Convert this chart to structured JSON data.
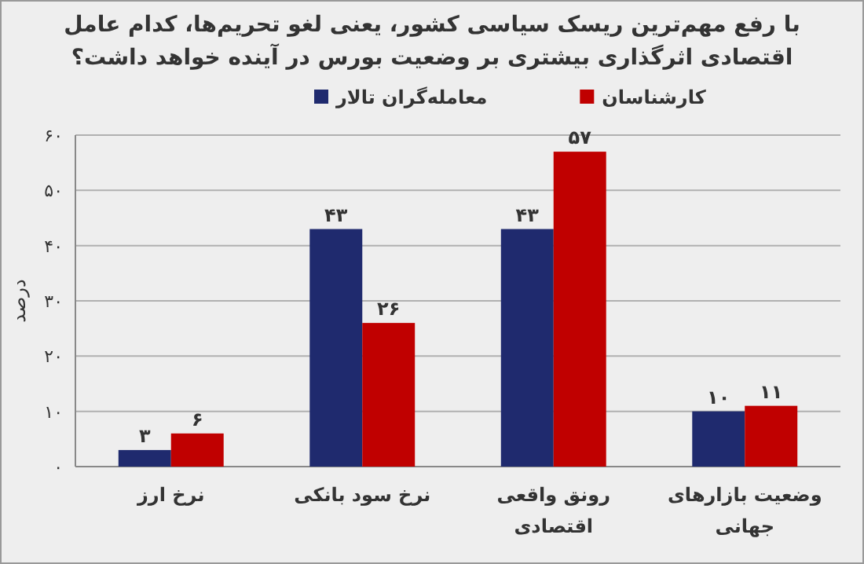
{
  "chart_data": {
    "type": "bar",
    "title": "با رفع مهم‌ترین ریسک سیاسی کشور، یعنی لغو تحریم‌ها، کدام عامل اقتصادی اثرگذاری بیشتری بر وضعیت بورس در آینده خواهد داشت؟",
    "ylabel": "درصد",
    "categories": [
      "نرخ ارز",
      "نرخ سود بانکی",
      "رونق واقعی اقتصادی",
      "وضعیت بازارهای جهانی"
    ],
    "series": [
      {
        "name": "معامله‌گران تالار",
        "color": "#1f2a6e",
        "values": [
          3,
          43,
          43,
          10
        ],
        "value_labels": [
          "۳",
          "۴۳",
          "۴۳",
          "۱۰"
        ]
      },
      {
        "name": "کارشناسان",
        "color": "#c00000",
        "values": [
          6,
          26,
          57,
          11
        ],
        "value_labels": [
          "۶",
          "۲۶",
          "۵۷",
          "۱۱"
        ]
      }
    ],
    "ylim": [
      0,
      60
    ],
    "yticks": [
      {
        "value": 0,
        "label": "۰"
      },
      {
        "value": 10,
        "label": "۱۰"
      },
      {
        "value": 20,
        "label": "۲۰"
      },
      {
        "value": 30,
        "label": "۳۰"
      },
      {
        "value": 40,
        "label": "۴۰"
      },
      {
        "value": 50,
        "label": "۵۰"
      },
      {
        "value": 60,
        "label": "۶۰"
      }
    ],
    "grid": "y",
    "legend": "top"
  }
}
